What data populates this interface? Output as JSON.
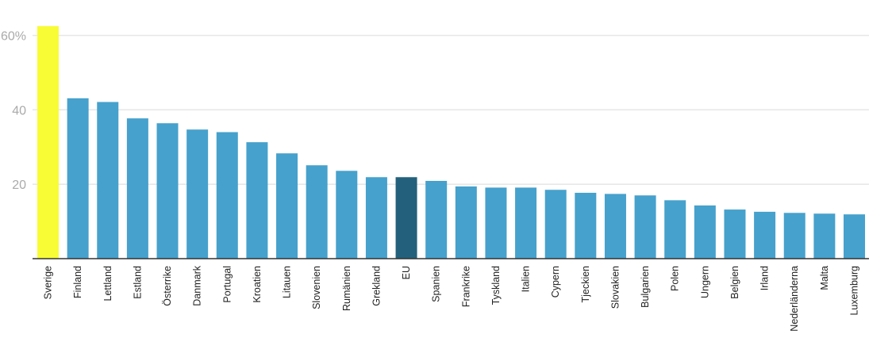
{
  "chart_data": {
    "type": "bar",
    "title": "",
    "xlabel": "",
    "ylabel": "",
    "ylim": [
      0,
      60
    ],
    "yticks": [
      {
        "value": 20,
        "label": "20"
      },
      {
        "value": 40,
        "label": "40"
      },
      {
        "value": 60,
        "label": "60%"
      }
    ],
    "grid": true,
    "categories": [
      "Sverige",
      "Finland",
      "Lettland",
      "Estland",
      "Österrike",
      "Danmark",
      "Portugal",
      "Kroatien",
      "Litauen",
      "Slovenien",
      "Rumänien",
      "Grekland",
      "EU",
      "Spanien",
      "Frankrike",
      "Tyskland",
      "Italien",
      "Cypern",
      "Tjeckien",
      "Slovakien",
      "Bulgarien",
      "Polen",
      "Ungern",
      "Belgien",
      "Irland",
      "Nederländerna",
      "Malta",
      "Luxemburg"
    ],
    "values": [
      62.5,
      43.1,
      42.1,
      37.7,
      36.4,
      34.7,
      34.0,
      31.3,
      28.3,
      25.1,
      23.6,
      21.9,
      21.9,
      20.9,
      19.4,
      19.1,
      19.1,
      18.5,
      17.7,
      17.4,
      17.0,
      15.7,
      14.3,
      13.2,
      12.6,
      12.3,
      12.1,
      11.9
    ],
    "colors": {
      "default": "#46a1cc",
      "highlight": "#f8fc35",
      "eu": "#23607b",
      "grid": "#e6e6e6",
      "axis": "#333333"
    },
    "highlight_categories": {
      "Sverige": "highlight",
      "EU": "eu"
    }
  }
}
